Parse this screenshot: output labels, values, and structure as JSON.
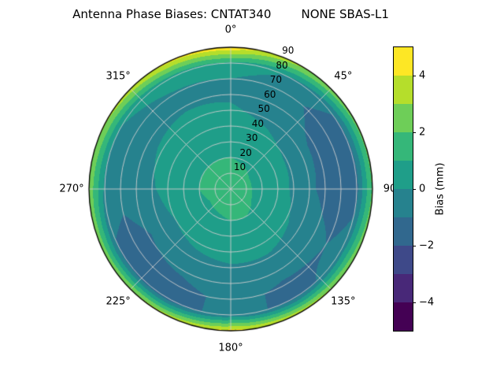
{
  "chart_data": {
    "type": "heatmap",
    "subtype": "polar-filled-contour",
    "title": "Antenna Phase Biases: CNTAT340        NONE SBAS-L1",
    "colormap_name": "viridis",
    "band_colors": [
      "#440154",
      "#482878",
      "#3e4989",
      "#31688e",
      "#26828e",
      "#1f9e89",
      "#35b779",
      "#6ece58",
      "#b5de2b",
      "#fde725"
    ],
    "contour_levels": [
      -5,
      -4,
      -3,
      -2,
      -1,
      0,
      1,
      2,
      3,
      4,
      5
    ],
    "value_range": [
      -5,
      5
    ],
    "theta_zero_location": "N",
    "theta_direction": "clockwise",
    "grid_on": true,
    "azimuth_tick_labels": [
      "0°",
      "45°",
      "90",
      "135°",
      "180°",
      "225°",
      "270°",
      "315°"
    ],
    "radial_tick_labels": [
      "10",
      "20",
      "30",
      "40",
      "50",
      "60",
      "70",
      "80",
      "90"
    ],
    "radial_label_azimuth_deg": 22.5,
    "colorbar": {
      "label": "Bias (mm)",
      "ticks": [
        {
          "value": 4,
          "label": "4"
        },
        {
          "value": 2,
          "label": "2"
        },
        {
          "value": 0,
          "label": "0"
        },
        {
          "value": -2,
          "label": "−2"
        },
        {
          "value": -4,
          "label": "−4"
        }
      ]
    },
    "grid": {
      "azimuth_deg": [
        0,
        30,
        60,
        90,
        120,
        150,
        180,
        210,
        240,
        270,
        300,
        330
      ],
      "zenith_deg": [
        0,
        10,
        20,
        30,
        40,
        50,
        60,
        70,
        80,
        90
      ],
      "bias_mm": [
        [
          1.3,
          1.3,
          1.3,
          1.3,
          1.3,
          1.3,
          1.3,
          1.3,
          1.3,
          1.3,
          1.3,
          1.3
        ],
        [
          1.2,
          1.2,
          1.1,
          1.1,
          1.1,
          1.2,
          1.2,
          1.2,
          1.1,
          1.2,
          1.2,
          1.2
        ],
        [
          1.0,
          0.9,
          0.8,
          0.8,
          0.9,
          1.0,
          1.0,
          0.9,
          0.9,
          1.0,
          1.0,
          1.0
        ],
        [
          0.8,
          0.7,
          0.5,
          0.5,
          0.6,
          0.7,
          0.7,
          0.7,
          0.6,
          0.7,
          0.8,
          0.8
        ],
        [
          0.4,
          0.2,
          -0.1,
          -0.2,
          0.1,
          0.3,
          0.3,
          0.2,
          0.0,
          0.3,
          0.4,
          0.4
        ],
        [
          0.1,
          -0.2,
          -0.7,
          -0.8,
          -0.3,
          -0.1,
          -0.1,
          -0.3,
          -0.6,
          -0.1,
          0.1,
          0.2
        ],
        [
          -0.1,
          -0.5,
          -1.2,
          -1.3,
          -0.7,
          -0.6,
          -0.4,
          -0.8,
          -1.1,
          -0.4,
          -0.2,
          -0.1
        ],
        [
          0.0,
          -0.7,
          -1.5,
          -1.6,
          -1.0,
          -1.2,
          -0.7,
          -1.4,
          -1.5,
          -0.6,
          -0.4,
          -0.1
        ],
        [
          0.9,
          -0.2,
          -1.2,
          -1.3,
          -0.6,
          -1.3,
          -0.6,
          -1.5,
          -1.2,
          -0.2,
          0.0,
          0.5
        ],
        [
          4.8,
          3.2,
          2.4,
          2.2,
          2.8,
          3.6,
          4.4,
          3.4,
          2.8,
          2.8,
          3.2,
          4.2
        ]
      ]
    }
  }
}
